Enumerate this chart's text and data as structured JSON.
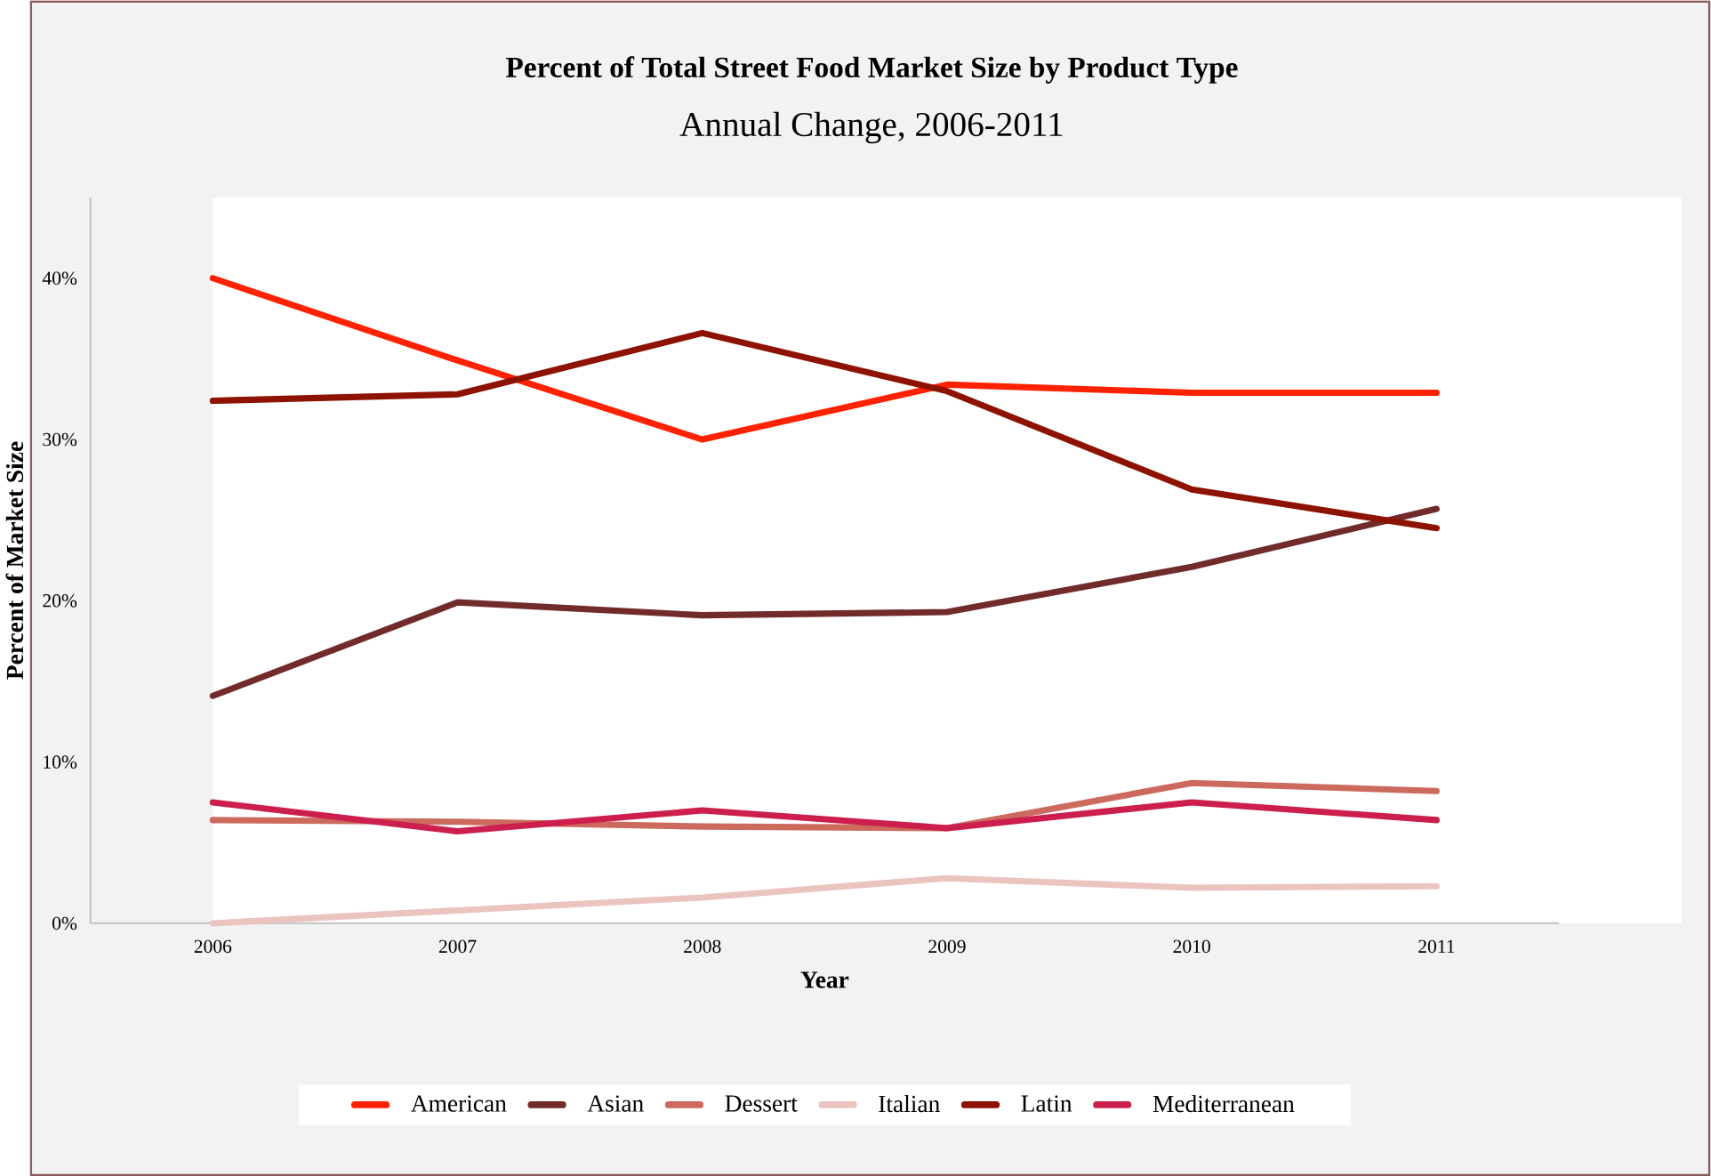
{
  "chart_data": {
    "type": "line",
    "title": "Percent of Total Street Food Market Size by Product Type",
    "subtitle": "Annual Change, 2006-2011",
    "xlabel": "Year",
    "ylabel": "Percent of Market Size",
    "categories": [
      "2006",
      "2007",
      "2008",
      "2009",
      "2010",
      "2011"
    ],
    "series": [
      {
        "name": "American",
        "color": "#ff2200",
        "values": [
          40.0,
          34.9,
          30.0,
          33.4,
          32.9,
          32.9
        ]
      },
      {
        "name": "Asian",
        "color": "#722b2b",
        "values": [
          14.1,
          19.9,
          19.1,
          19.3,
          22.1,
          25.7
        ]
      },
      {
        "name": "Dessert",
        "color": "#cc6a5e",
        "values": [
          6.4,
          6.3,
          6.0,
          5.9,
          8.7,
          8.2
        ]
      },
      {
        "name": "Italian",
        "color": "#ebc4c0",
        "values": [
          0.0,
          0.8,
          1.6,
          2.8,
          2.2,
          2.3
        ]
      },
      {
        "name": "Latin",
        "color": "#8e1200",
        "values": [
          32.4,
          32.8,
          36.6,
          33.0,
          26.9,
          24.5
        ]
      },
      {
        "name": "Mediterranean",
        "color": "#cc1f4e",
        "values": [
          7.5,
          5.7,
          7.0,
          5.9,
          7.5,
          6.4
        ]
      }
    ],
    "ylim": [
      0,
      45
    ],
    "yticks": [
      {
        "value": 0,
        "label": "0%"
      },
      {
        "value": 10,
        "label": "10%"
      },
      {
        "value": 20,
        "label": "20%"
      },
      {
        "value": 30,
        "label": "30%"
      },
      {
        "value": 40,
        "label": "40%"
      }
    ],
    "grid": false,
    "legend": "bottom",
    "marker": "none",
    "line_style": "solid"
  }
}
